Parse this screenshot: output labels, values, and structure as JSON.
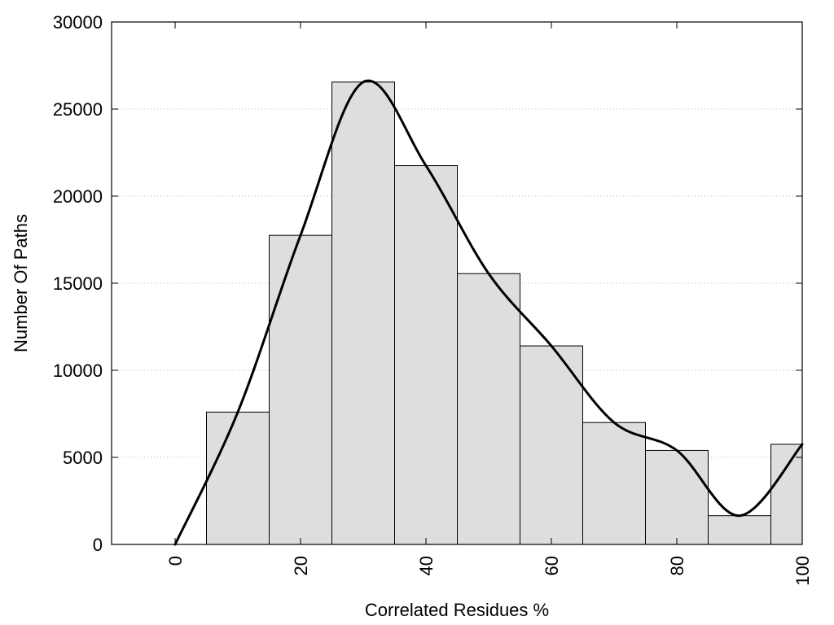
{
  "chart_data": {
    "type": "bar",
    "title": "",
    "xlabel": "Correlated Residues %",
    "ylabel": "Number Of Paths",
    "xlim": [
      -10,
      100
    ],
    "ylim": [
      0,
      30000
    ],
    "bar_width": 10,
    "bar_color": "#dedede",
    "bar_stroke": "#000000",
    "curve_color": "#000000",
    "grid": "horizontal dotted",
    "x_ticks": [
      0,
      20,
      40,
      60,
      80,
      100
    ],
    "y_ticks": [
      0,
      5000,
      10000,
      15000,
      20000,
      25000,
      30000
    ],
    "bars": [
      {
        "x": 10,
        "value": 7600
      },
      {
        "x": 20,
        "value": 17750
      },
      {
        "x": 30,
        "value": 26550
      },
      {
        "x": 40,
        "value": 21750
      },
      {
        "x": 50,
        "value": 15550
      },
      {
        "x": 60,
        "value": 11400
      },
      {
        "x": 70,
        "value": 7000
      },
      {
        "x": 80,
        "value": 5400
      },
      {
        "x": 90,
        "value": 1650
      },
      {
        "x": 100,
        "value": 5750
      }
    ],
    "curve": {
      "x": [
        0,
        10,
        20,
        30,
        40,
        50,
        60,
        70,
        80,
        90,
        100
      ],
      "y": [
        0,
        7600,
        17750,
        26550,
        21750,
        15550,
        11400,
        7000,
        5400,
        1650,
        5750
      ]
    }
  }
}
